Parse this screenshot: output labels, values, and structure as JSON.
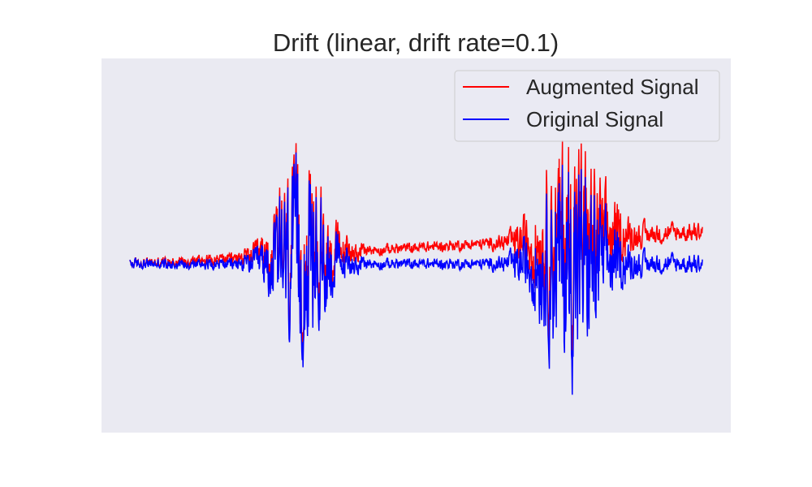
{
  "chart_data": {
    "type": "line",
    "title": "Drift (linear, drift rate=0.1)",
    "xlabel": "",
    "ylabel": "",
    "grid": false,
    "axis_ticks": false,
    "legend": {
      "placement": "top-right"
    },
    "background_color": "#eaeaf2",
    "series": [
      {
        "name": "Augmented Signal",
        "color": "#ff0000",
        "drift_rate": 0.1,
        "drift": "linear"
      },
      {
        "name": "Original Signal",
        "color": "#0000ff"
      }
    ]
  }
}
